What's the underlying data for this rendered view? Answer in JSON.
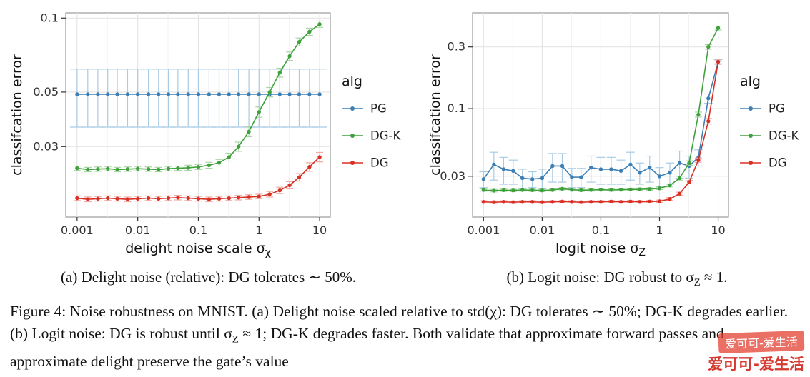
{
  "figure": {
    "subcaption_a_html": "(a) Delight noise (relative): DG tolerates ∼ 50%.",
    "subcaption_b_html": "(b) Logit noise: DG robust to σ<sub>Z</sub> ≈ 1.",
    "caption_html": "Figure 4: Noise robustness on MNIST. (a) Delight noise scaled relative to std(χ): DG tolerates ∼ 50%; DG-K degrades earlier. (b) Logit noise: DG is robust until σ<sub>Z</sub> ≈ 1; DG-K degrades faster. Both validate that approximate forward passes and approximate delight preserve the gate’s value",
    "watermark_text": "爱可可-爱生活"
  },
  "colors": {
    "pg_blue": "#3d7fb5",
    "pg_blue_light": "#a9cbe3",
    "dgk_green": "#3fa13c",
    "dgk_green_light": "#a8d5a4",
    "dg_red": "#d93025",
    "dg_red_light": "#f0a9a4",
    "grid": "#e4e4e4",
    "panel_border": "#9b9b9b"
  },
  "chart_data": [
    {
      "type": "line",
      "title": "",
      "xlabel_main": "delight noise scale σ",
      "xlabel_sub": "χ",
      "ylabel": "classifcation error",
      "legend_title": "alg",
      "xscale": "log",
      "yscale": "log",
      "xlim": [
        0.00065,
        15
      ],
      "ylim": [
        0.0155,
        0.105
      ],
      "xticks": [
        {
          "v": 0.001,
          "label": "0.001"
        },
        {
          "v": 0.01,
          "label": "0.01"
        },
        {
          "v": 0.1,
          "label": "0.1"
        },
        {
          "v": 1,
          "label": "1"
        },
        {
          "v": 10,
          "label": "10"
        }
      ],
      "yticks": [
        {
          "v": 0.1,
          "label": "0.1"
        },
        {
          "v": 0.05,
          "label": "0.05"
        },
        {
          "v": 0.03,
          "label": "0.03"
        }
      ],
      "xminor": [
        0.00316,
        0.0316,
        0.316,
        3.16
      ],
      "x": [
        0.001,
        0.0015,
        0.0022,
        0.0032,
        0.0046,
        0.0068,
        0.01,
        0.015,
        0.022,
        0.032,
        0.046,
        0.068,
        0.1,
        0.15,
        0.22,
        0.32,
        0.46,
        0.68,
        1,
        1.5,
        2.2,
        3.2,
        4.6,
        6.8,
        10
      ],
      "series": [
        {
          "name": "PG",
          "color": "#3d7fb5",
          "err_color": "#a9cbe3",
          "cap": 10,
          "y": [
            0.049,
            0.049,
            0.049,
            0.049,
            0.049,
            0.049,
            0.049,
            0.049,
            0.049,
            0.049,
            0.049,
            0.049,
            0.049,
            0.049,
            0.049,
            0.049,
            0.049,
            0.049,
            0.049,
            0.049,
            0.049,
            0.049,
            0.049,
            0.049,
            0.049
          ],
          "yerr": [
            0.013,
            0.013,
            0.013,
            0.013,
            0.013,
            0.013,
            0.013,
            0.013,
            0.013,
            0.013,
            0.013,
            0.013,
            0.013,
            0.013,
            0.013,
            0.013,
            0.013,
            0.013,
            0.013,
            0.013,
            0.013,
            0.013,
            0.013,
            0.013,
            0.013
          ]
        },
        {
          "name": "DG-K",
          "color": "#3fa13c",
          "err_color": "#a8d5a4",
          "cap": 5,
          "y": [
            0.0245,
            0.0242,
            0.0243,
            0.0244,
            0.0242,
            0.0243,
            0.0244,
            0.0243,
            0.0242,
            0.0244,
            0.0245,
            0.0246,
            0.0248,
            0.0252,
            0.0258,
            0.0272,
            0.03,
            0.0345,
            0.0415,
            0.05,
            0.06,
            0.07,
            0.08,
            0.088,
            0.0945
          ],
          "yerr": [
            0.0005,
            0.0005,
            0.0005,
            0.0005,
            0.0005,
            0.0005,
            0.0005,
            0.0005,
            0.0005,
            0.0005,
            0.0005,
            0.0006,
            0.0006,
            0.0007,
            0.0008,
            0.001,
            0.0013,
            0.0016,
            0.002,
            0.0022,
            0.0025,
            0.0028,
            0.003,
            0.003,
            0.0028
          ]
        },
        {
          "name": "DG",
          "color": "#d93025",
          "err_color": "#f0a9a4",
          "cap": 5,
          "y": [
            0.0185,
            0.0183,
            0.0184,
            0.0185,
            0.0184,
            0.0183,
            0.0184,
            0.0185,
            0.0184,
            0.0185,
            0.0186,
            0.0185,
            0.0184,
            0.0183,
            0.0184,
            0.0185,
            0.0186,
            0.0187,
            0.0188,
            0.0192,
            0.0199,
            0.0209,
            0.0225,
            0.0248,
            0.0272
          ],
          "yerr": [
            0.0004,
            0.0004,
            0.0004,
            0.0004,
            0.0004,
            0.0004,
            0.0004,
            0.0004,
            0.0004,
            0.0004,
            0.0004,
            0.0004,
            0.0004,
            0.0004,
            0.0004,
            0.0004,
            0.0004,
            0.0004,
            0.0004,
            0.0005,
            0.0006,
            0.0007,
            0.0008,
            0.001,
            0.0012
          ]
        }
      ]
    },
    {
      "type": "line",
      "title": "",
      "xlabel_main": "logit noise σ",
      "xlabel_sub": "Z",
      "ylabel": "classifcation error",
      "legend_title": "alg",
      "xscale": "log",
      "yscale": "log",
      "xlim": [
        0.00065,
        15
      ],
      "ylim": [
        0.0145,
        0.55
      ],
      "xticks": [
        {
          "v": 0.001,
          "label": "0.001"
        },
        {
          "v": 0.01,
          "label": "0.01"
        },
        {
          "v": 0.1,
          "label": "0.1"
        },
        {
          "v": 1,
          "label": "1"
        },
        {
          "v": 10,
          "label": "10"
        }
      ],
      "yticks": [
        {
          "v": 0.3,
          "label": "0.3"
        },
        {
          "v": 0.1,
          "label": "0.1"
        },
        {
          "v": 0.03,
          "label": "0.03"
        }
      ],
      "xminor": [
        0.00316,
        0.0316,
        0.316,
        3.16
      ],
      "x": [
        0.001,
        0.0015,
        0.0022,
        0.0032,
        0.0046,
        0.0068,
        0.01,
        0.015,
        0.022,
        0.032,
        0.046,
        0.068,
        0.1,
        0.15,
        0.22,
        0.32,
        0.46,
        0.68,
        1,
        1.5,
        2.2,
        3.2,
        4.6,
        6.8,
        10
      ],
      "series": [
        {
          "name": "PG",
          "color": "#3d7fb5",
          "err_color": "#a9cbe3",
          "cap": 6,
          "y": [
            0.0285,
            0.037,
            0.034,
            0.033,
            0.029,
            0.0285,
            0.029,
            0.036,
            0.036,
            0.0295,
            0.0295,
            0.035,
            0.034,
            0.034,
            0.033,
            0.037,
            0.032,
            0.035,
            0.03,
            0.032,
            0.038,
            0.036,
            0.042,
            0.12,
            0.23
          ],
          "yerr": [
            0.004,
            0.009,
            0.008,
            0.007,
            0.005,
            0.004,
            0.005,
            0.009,
            0.009,
            0.005,
            0.005,
            0.008,
            0.008,
            0.008,
            0.007,
            0.009,
            0.006,
            0.008,
            0.005,
            0.006,
            0.009,
            0.007,
            0.006,
            0.01,
            0.008
          ]
        },
        {
          "name": "DG-K",
          "color": "#3fa13c",
          "err_color": "#a8d5a4",
          "cap": 5,
          "y": [
            0.0235,
            0.0232,
            0.0234,
            0.0233,
            0.0235,
            0.0234,
            0.0233,
            0.0235,
            0.024,
            0.0236,
            0.0234,
            0.0235,
            0.0236,
            0.0235,
            0.0236,
            0.0237,
            0.0238,
            0.0239,
            0.0242,
            0.0255,
            0.029,
            0.038,
            0.09,
            0.3,
            0.42
          ],
          "yerr": [
            0.0005,
            0.0005,
            0.0005,
            0.0005,
            0.0005,
            0.0005,
            0.0005,
            0.0005,
            0.0005,
            0.0005,
            0.0005,
            0.0005,
            0.0005,
            0.0005,
            0.0005,
            0.0005,
            0.0005,
            0.0005,
            0.0005,
            0.0007,
            0.001,
            0.0015,
            0.004,
            0.012,
            0.015
          ]
        },
        {
          "name": "DG",
          "color": "#d93025",
          "err_color": "#f0a9a4",
          "cap": 5,
          "y": [
            0.019,
            0.0189,
            0.019,
            0.0189,
            0.019,
            0.019,
            0.0189,
            0.019,
            0.0191,
            0.019,
            0.0189,
            0.019,
            0.019,
            0.0191,
            0.019,
            0.0191,
            0.019,
            0.0191,
            0.0192,
            0.02,
            0.022,
            0.027,
            0.04,
            0.08,
            0.23
          ],
          "yerr": [
            0.0004,
            0.0004,
            0.0004,
            0.0004,
            0.0004,
            0.0004,
            0.0004,
            0.0004,
            0.0004,
            0.0004,
            0.0004,
            0.0004,
            0.0004,
            0.0004,
            0.0004,
            0.0004,
            0.0004,
            0.0004,
            0.0004,
            0.0005,
            0.0006,
            0.0008,
            0.0015,
            0.004,
            0.01
          ]
        }
      ]
    }
  ]
}
